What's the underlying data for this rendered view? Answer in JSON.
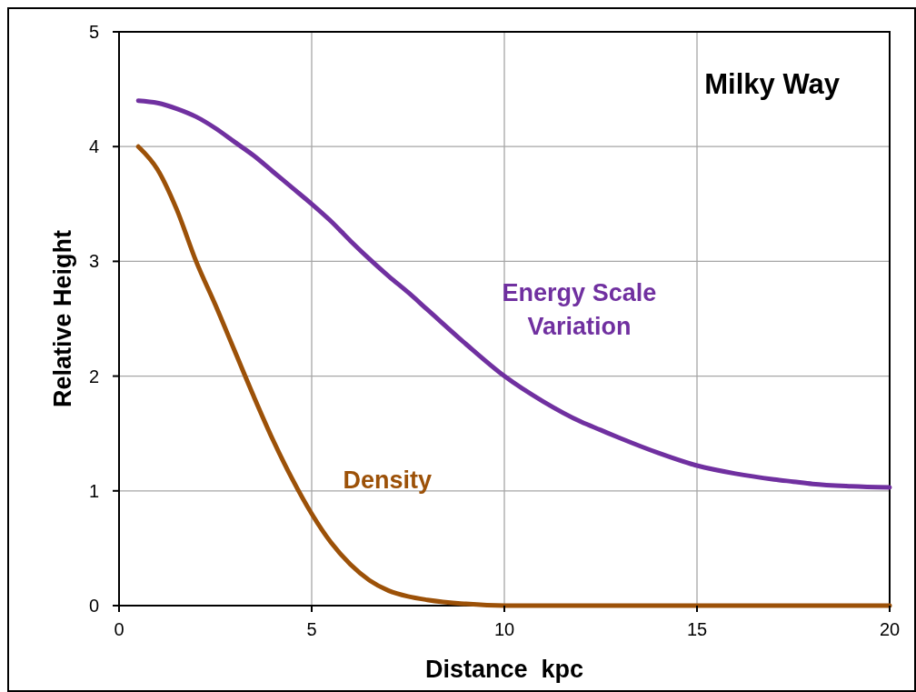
{
  "chart_data": {
    "type": "line",
    "title": "Milky Way",
    "xlabel": "Distance  kpc",
    "ylabel": "Relative Height",
    "xlim": [
      0,
      20
    ],
    "ylim": [
      0,
      5
    ],
    "xticks": [
      0,
      5,
      10,
      15,
      20
    ],
    "yticks": [
      0,
      1,
      2,
      3,
      4,
      5
    ],
    "grid": true,
    "marker": "none",
    "line_style": "solid",
    "series": [
      {
        "name": "Energy Scale Variation",
        "color": "#7030a0",
        "x": [
          0.5,
          1,
          1.5,
          2,
          2.5,
          3,
          3.5,
          4,
          4.5,
          5,
          5.5,
          6,
          6.5,
          7,
          7.5,
          8,
          9,
          10,
          11,
          12,
          12.5,
          13,
          14,
          15,
          16,
          17,
          17.5,
          18,
          19,
          20
        ],
        "values": [
          4.4,
          4.38,
          4.33,
          4.26,
          4.16,
          4.04,
          3.92,
          3.78,
          3.64,
          3.5,
          3.35,
          3.18,
          3.02,
          2.87,
          2.73,
          2.58,
          2.28,
          2.0,
          1.78,
          1.6,
          1.53,
          1.46,
          1.33,
          1.22,
          1.15,
          1.1,
          1.08,
          1.06,
          1.04,
          1.03
        ]
      },
      {
        "name": "Density",
        "color": "#9c5108",
        "x": [
          0.5,
          1,
          1.5,
          2,
          2.5,
          3,
          3.5,
          4,
          4.5,
          5,
          5.5,
          6,
          6.5,
          7,
          7.5,
          8,
          9,
          10,
          12,
          15,
          20
        ],
        "values": [
          4.0,
          3.8,
          3.45,
          3.0,
          2.62,
          2.22,
          1.82,
          1.44,
          1.1,
          0.8,
          0.55,
          0.36,
          0.22,
          0.13,
          0.08,
          0.05,
          0.015,
          0.0,
          0.0,
          0.0,
          0.0
        ]
      }
    ]
  }
}
